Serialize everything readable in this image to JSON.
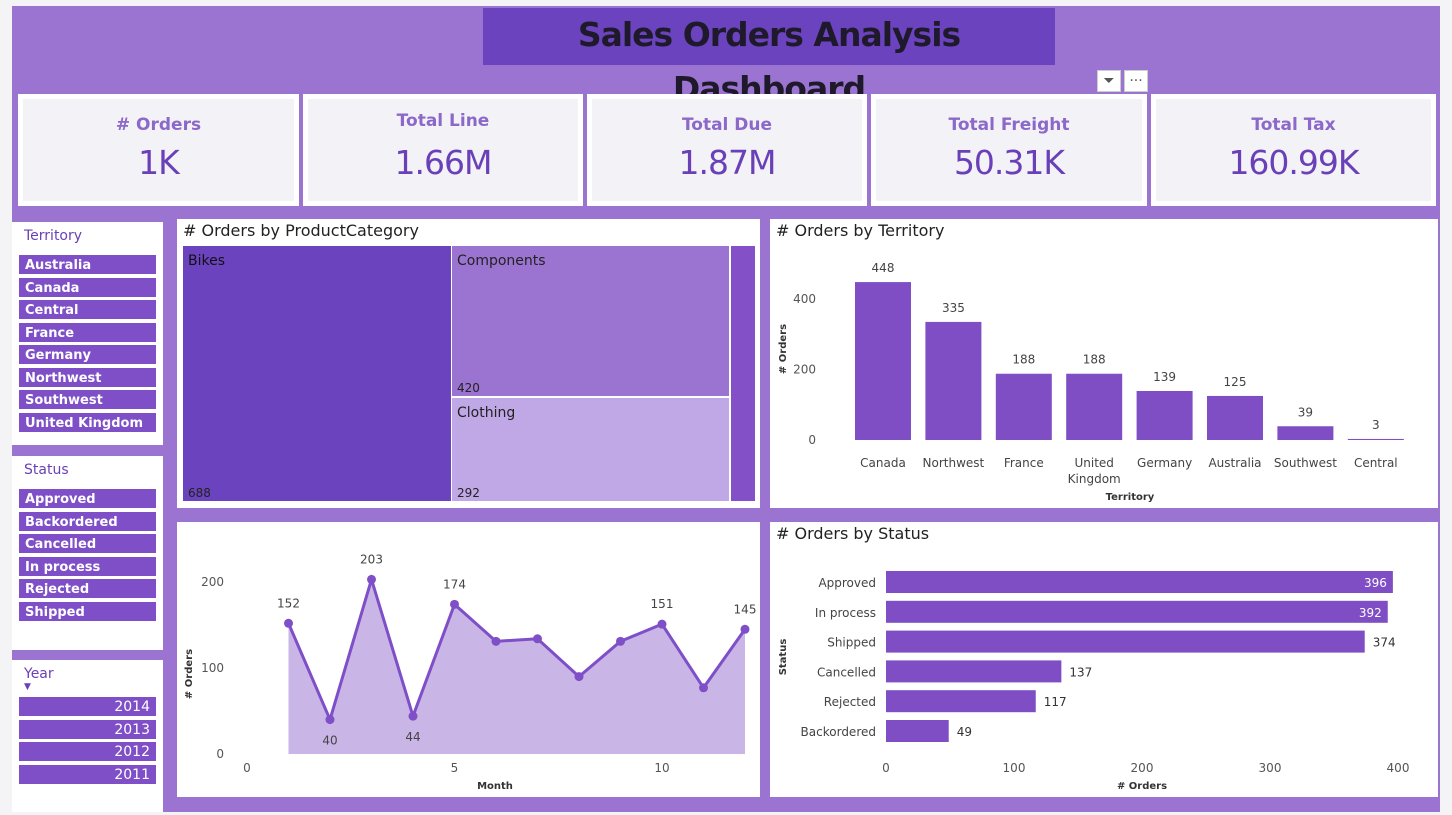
{
  "title": "Sales Orders Analysis Dashboard",
  "toolbar": {
    "filter_icon": "filter-icon",
    "more_icon": "more-icon",
    "more_glyph": "···",
    "filter_glyph": "⏷"
  },
  "kpis": [
    {
      "label": "# Orders",
      "value": "1K"
    },
    {
      "label": "Total Line",
      "value": "1.66M"
    },
    {
      "label": "Total Due",
      "value": "1.87M"
    },
    {
      "label": "Total Freight",
      "value": "50.31K"
    },
    {
      "label": "Total Tax",
      "value": "160.99K"
    }
  ],
  "slicers": {
    "territory": {
      "title": "Territory",
      "items": [
        "Australia",
        "Canada",
        "Central",
        "France",
        "Germany",
        "Northwest",
        "Southwest",
        "United Kingdom"
      ]
    },
    "status": {
      "title": "Status",
      "items": [
        "Approved",
        "Backordered",
        "Cancelled",
        "In process",
        "Rejected",
        "Shipped"
      ]
    },
    "year": {
      "title": "Year",
      "items": [
        "2014",
        "2013",
        "2012",
        "2011"
      ]
    }
  },
  "colors": {
    "canvas": "#9b74d1",
    "accent": "#7e4fc6",
    "dark": "#6c43be",
    "light": "#c0a7e6"
  },
  "chart_data": [
    {
      "type": "treemap",
      "title": "# Orders by ProductCategory",
      "categories": [
        "Bikes",
        "Components",
        "Clothing",
        ""
      ],
      "values": [
        688,
        420,
        292,
        null
      ]
    },
    {
      "type": "bar",
      "title": "# Orders by Territory",
      "xlabel": "Territory",
      "ylabel": "# Orders",
      "categories": [
        "Canada",
        "Northwest",
        "France",
        "United Kingdom",
        "Germany",
        "Australia",
        "Southwest",
        "Central"
      ],
      "values": [
        448,
        335,
        188,
        188,
        139,
        125,
        39,
        3
      ],
      "yticks": [
        0,
        200,
        400
      ],
      "ylim": [
        0,
        480
      ],
      "grid": false
    },
    {
      "type": "area",
      "title": "",
      "xlabel": "Month",
      "ylabel": "# Orders",
      "x": [
        1,
        2,
        3,
        4,
        5,
        6,
        7,
        8,
        9,
        10,
        11,
        12
      ],
      "values": [
        152,
        40,
        203,
        44,
        174,
        131,
        134,
        90,
        131,
        151,
        77,
        145
      ],
      "labels": {
        "1": 152,
        "2": 40,
        "3": 203,
        "4": 44,
        "5": 174,
        "10": 151,
        "12": 145
      },
      "xticks": [
        0,
        5,
        10
      ],
      "yticks": [
        0,
        100,
        200
      ],
      "xlim": [
        0,
        12
      ],
      "ylim": [
        0,
        215
      ],
      "grid": false
    },
    {
      "type": "bar",
      "orientation": "horizontal",
      "title": "# Orders by Status",
      "xlabel": "# Orders",
      "ylabel": "Status",
      "categories": [
        "Approved",
        "In process",
        "Shipped",
        "Cancelled",
        "Rejected",
        "Backordered"
      ],
      "values": [
        396,
        392,
        374,
        137,
        117,
        49
      ],
      "xticks": [
        0,
        100,
        200,
        300,
        400
      ],
      "xlim": [
        0,
        400
      ],
      "grid": false
    }
  ]
}
